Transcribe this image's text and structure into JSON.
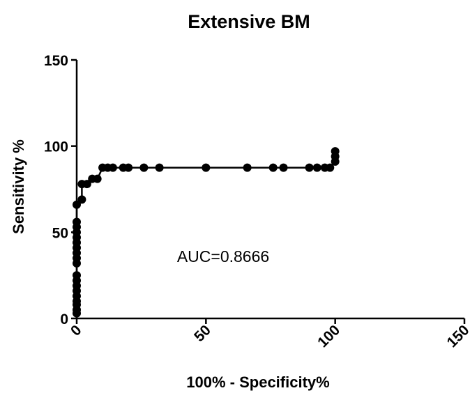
{
  "chart_data": {
    "type": "line",
    "title": "Extensive BM",
    "xlabel": "100%  -  Specificity%",
    "ylabel": "Sensitivity %",
    "xlim": [
      0,
      150
    ],
    "ylim": [
      0,
      150
    ],
    "x_ticks": [
      "0",
      "50",
      "100",
      "150"
    ],
    "y_ticks": [
      "0",
      "50",
      "100",
      "150"
    ],
    "annotation": "AUC=0.8666",
    "grid": false,
    "legend": "none",
    "series": [
      {
        "points": [
          [
            0,
            3
          ],
          [
            0,
            5
          ],
          [
            0,
            8
          ],
          [
            0,
            10
          ],
          [
            0,
            13
          ],
          [
            0,
            16
          ],
          [
            0,
            19
          ],
          [
            0,
            22
          ],
          [
            0,
            25
          ],
          [
            0,
            32
          ],
          [
            0,
            35
          ],
          [
            0,
            38
          ],
          [
            0,
            41
          ],
          [
            0,
            44
          ],
          [
            0,
            47
          ],
          [
            0,
            50
          ],
          [
            0,
            53
          ],
          [
            0,
            56
          ],
          [
            0,
            66
          ],
          [
            2,
            69
          ],
          [
            2,
            78
          ],
          [
            4,
            78
          ],
          [
            6,
            81
          ],
          [
            8,
            81
          ],
          [
            10,
            87.5
          ],
          [
            12,
            87.5
          ],
          [
            14,
            87.5
          ],
          [
            18,
            87.5
          ],
          [
            20,
            87.5
          ],
          [
            26,
            87.5
          ],
          [
            32,
            87.5
          ],
          [
            50,
            87.5
          ],
          [
            66,
            87.5
          ],
          [
            76,
            87.5
          ],
          [
            80,
            87.5
          ],
          [
            90,
            87.5
          ],
          [
            93,
            87.5
          ],
          [
            96,
            87.5
          ],
          [
            98,
            87.5
          ],
          [
            100,
            91
          ],
          [
            100,
            94
          ],
          [
            100,
            97
          ]
        ]
      }
    ]
  }
}
